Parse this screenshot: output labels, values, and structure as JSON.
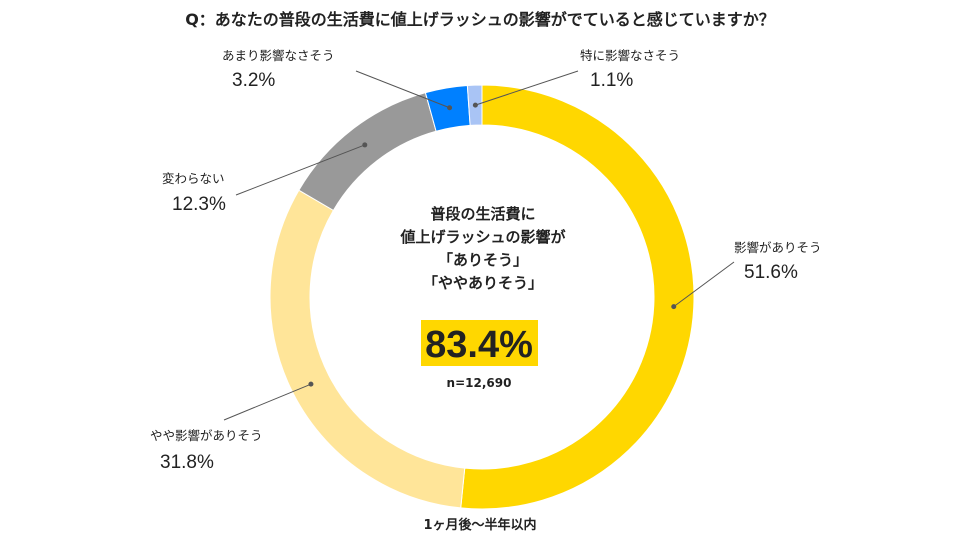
{
  "chart_data": {
    "type": "pie",
    "variant": "donut",
    "title": "Q：あなたの普段の生活費に値上げラッシュの影響がでていると感じていますか？",
    "segments": [
      {
        "label": "影響がありそう",
        "value": 51.6,
        "value_label": "51.6%",
        "color": "#FFD700"
      },
      {
        "label": "やや影響がありそう",
        "value": 31.8,
        "value_label": "31.8%",
        "color": "#FFE599"
      },
      {
        "label": "変わらない",
        "value": 12.3,
        "value_label": "12.3%",
        "color": "#999999"
      },
      {
        "label": "あまり影響なさそう",
        "value": 3.2,
        "value_label": "3.2%",
        "color": "#0080FF"
      },
      {
        "label": "特に影響なさそう",
        "value": 1.1,
        "value_label": "1.1%",
        "color": "#A9C4F5"
      }
    ],
    "center": {
      "lines": [
        "普段の生活費に",
        "値上げラッシュの影響が",
        "「ありそう」",
        "「ややありそう」"
      ],
      "highlight_value": "83.4%",
      "highlight_color": "#FFD700",
      "sample_size": "n=12,690"
    },
    "footer": "1ヶ月後～半年以内"
  }
}
